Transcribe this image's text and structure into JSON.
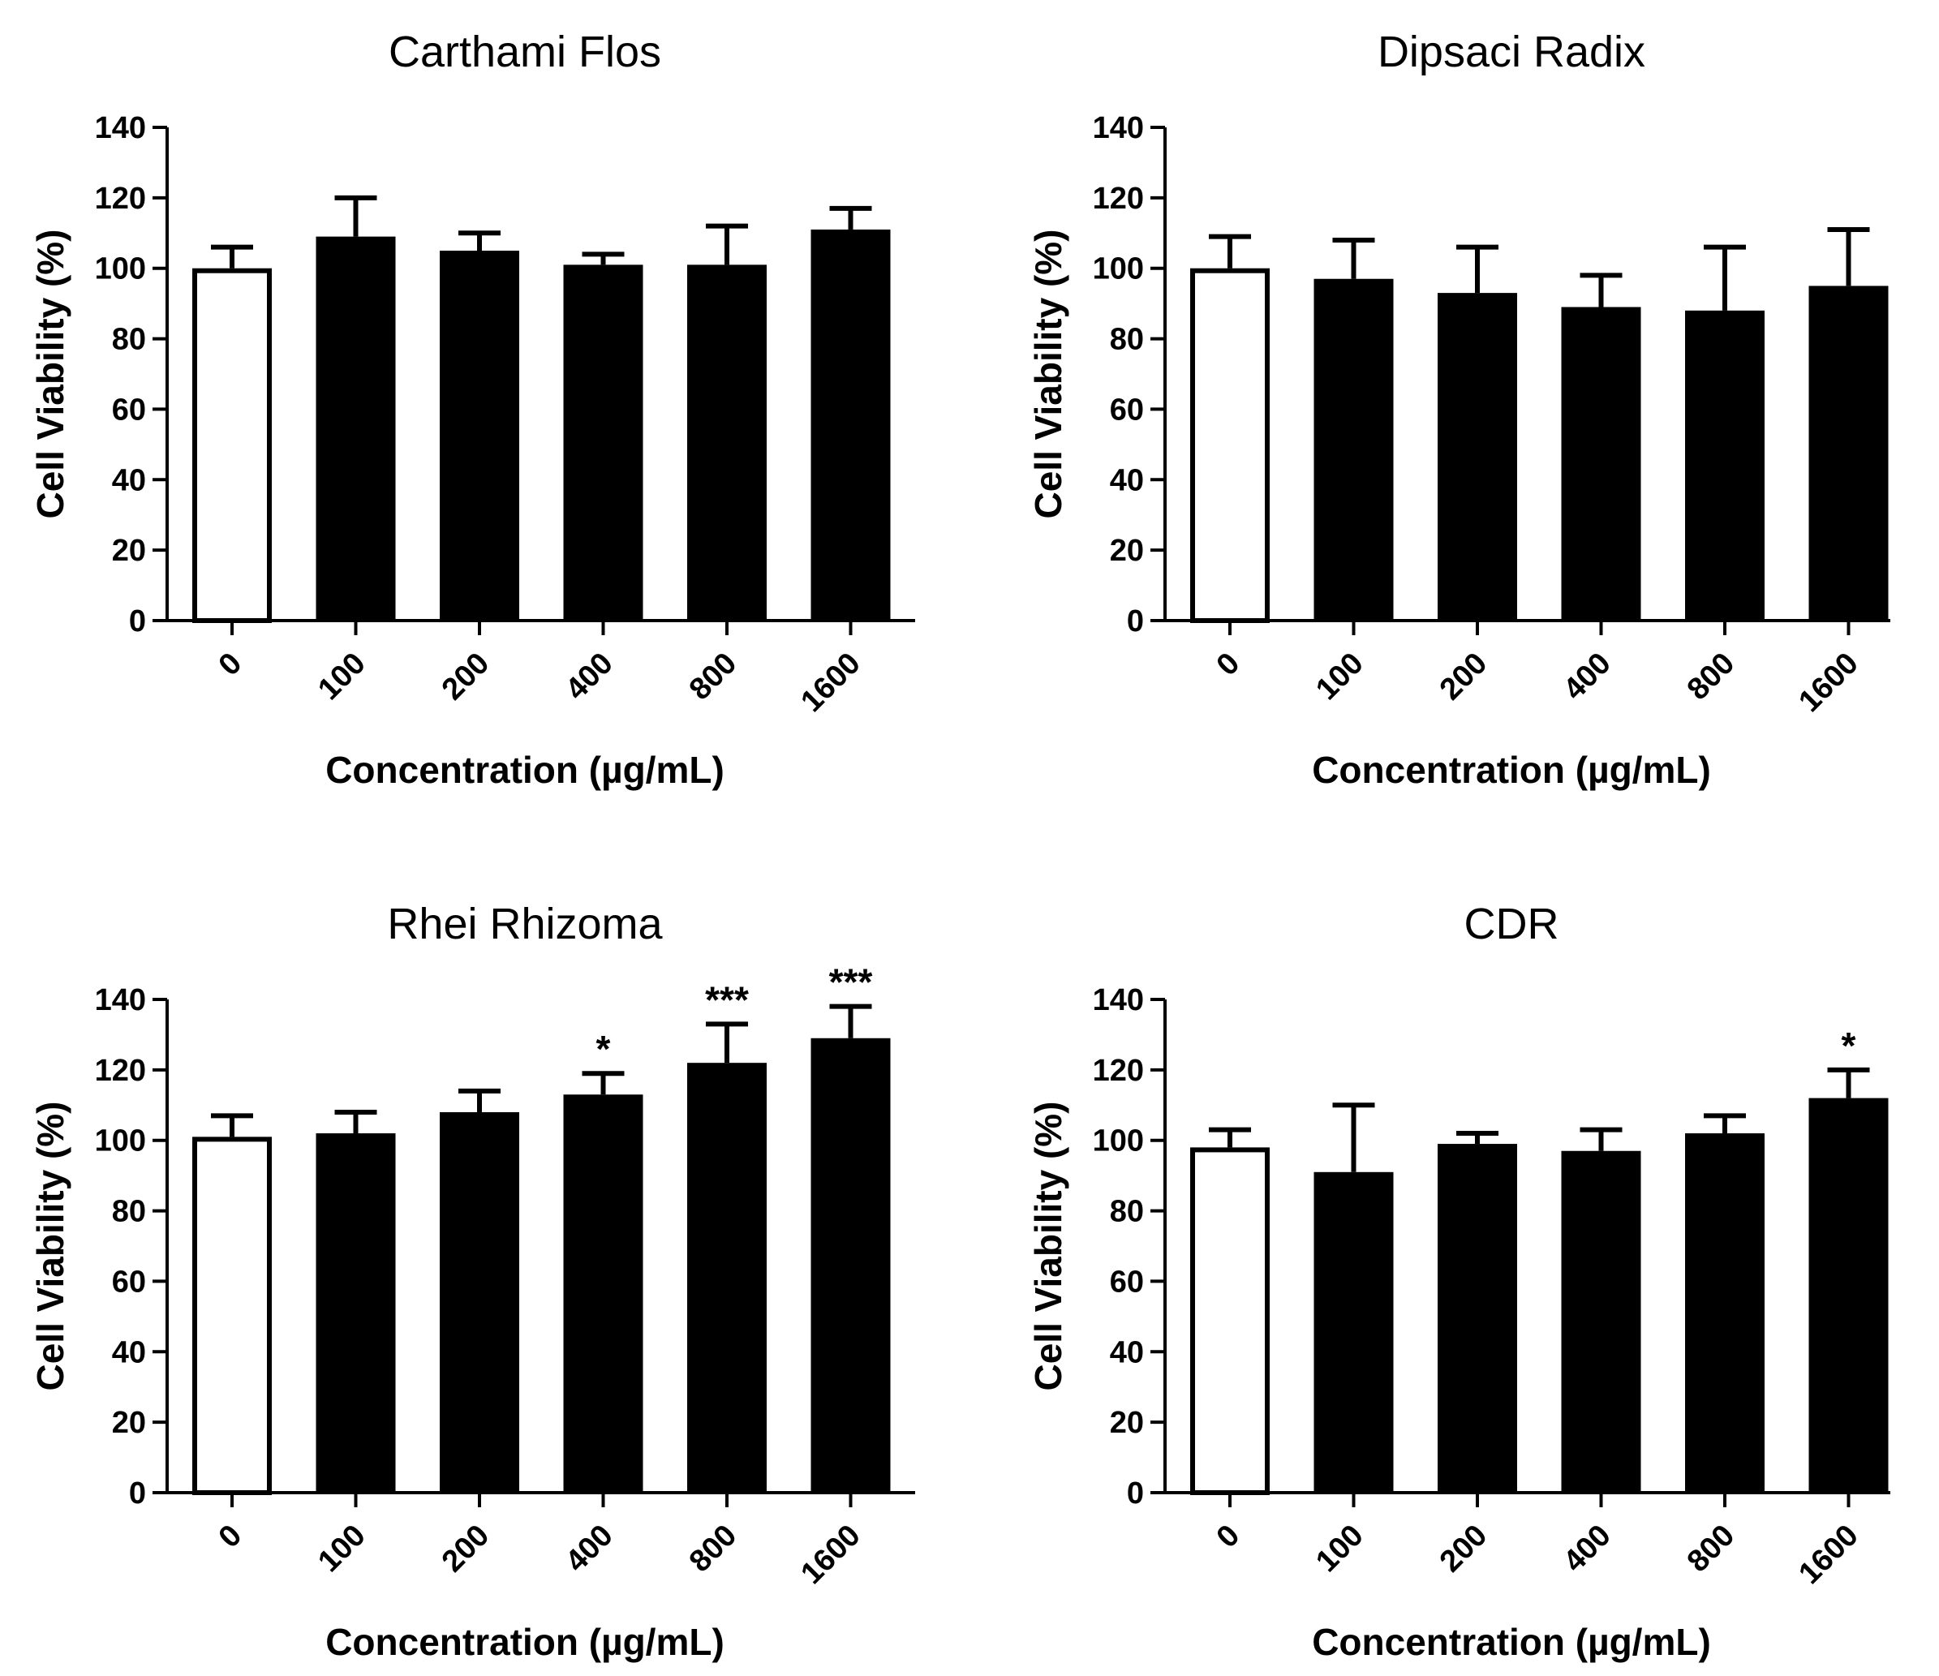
{
  "chart_data": [
    {
      "type": "bar",
      "title": "Carthami Flos",
      "xlabel": "Concentration (µg/mL)",
      "ylabel": "Cell Viability (%)",
      "ylim": [
        0,
        140
      ],
      "yticks": [
        "0",
        "20",
        "40",
        "60",
        "80",
        "100",
        "120",
        "140"
      ],
      "categories": [
        "0",
        "100",
        "200",
        "400",
        "800",
        "1600"
      ],
      "values": [
        100,
        109,
        105,
        101,
        101,
        111
      ],
      "errors": [
        6,
        11,
        5,
        3,
        11,
        6
      ],
      "colors": [
        "#ffffff",
        "#000000",
        "#000000",
        "#000000",
        "#000000",
        "#000000"
      ],
      "significance": [
        "",
        "",
        "",
        "",
        "",
        ""
      ]
    },
    {
      "type": "bar",
      "title": "Dipsaci Radix",
      "xlabel": "Concentration (µg/mL)",
      "ylabel": "Cell Viability (%)",
      "ylim": [
        0,
        140
      ],
      "yticks": [
        "0",
        "20",
        "40",
        "60",
        "80",
        "100",
        "120",
        "140"
      ],
      "categories": [
        "0",
        "100",
        "200",
        "400",
        "800",
        "1600"
      ],
      "values": [
        100,
        97,
        93,
        89,
        88,
        95
      ],
      "errors": [
        9,
        11,
        13,
        9,
        18,
        16
      ],
      "colors": [
        "#ffffff",
        "#000000",
        "#000000",
        "#000000",
        "#000000",
        "#000000"
      ],
      "significance": [
        "",
        "",
        "",
        "",
        "",
        ""
      ]
    },
    {
      "type": "bar",
      "title": "Rhei Rhizoma",
      "xlabel": "Concentration (µg/mL)",
      "ylabel": "Cell Viability (%)",
      "ylim": [
        0,
        140
      ],
      "yticks": [
        "0",
        "20",
        "40",
        "60",
        "80",
        "100",
        "120",
        "140"
      ],
      "categories": [
        "0",
        "100",
        "200",
        "400",
        "800",
        "1600"
      ],
      "values": [
        101,
        102,
        108,
        113,
        122,
        129
      ],
      "errors": [
        6,
        6,
        6,
        6,
        11,
        9
      ],
      "colors": [
        "#ffffff",
        "#000000",
        "#000000",
        "#000000",
        "#000000",
        "#000000"
      ],
      "significance": [
        "",
        "",
        "",
        "*",
        "***",
        "***"
      ]
    },
    {
      "type": "bar",
      "title": "CDR",
      "xlabel": "Concentration (µg/mL)",
      "ylabel": "Cell Viability (%)",
      "ylim": [
        0,
        140
      ],
      "yticks": [
        "0",
        "20",
        "40",
        "60",
        "80",
        "100",
        "120",
        "140"
      ],
      "categories": [
        "0",
        "100",
        "200",
        "400",
        "800",
        "1600"
      ],
      "values": [
        98,
        91,
        99,
        97,
        102,
        112
      ],
      "errors": [
        5,
        19,
        3,
        6,
        5,
        8
      ],
      "colors": [
        "#ffffff",
        "#000000",
        "#000000",
        "#000000",
        "#000000",
        "#000000"
      ],
      "significance": [
        "",
        "",
        "",
        "",
        "",
        "*"
      ]
    }
  ]
}
